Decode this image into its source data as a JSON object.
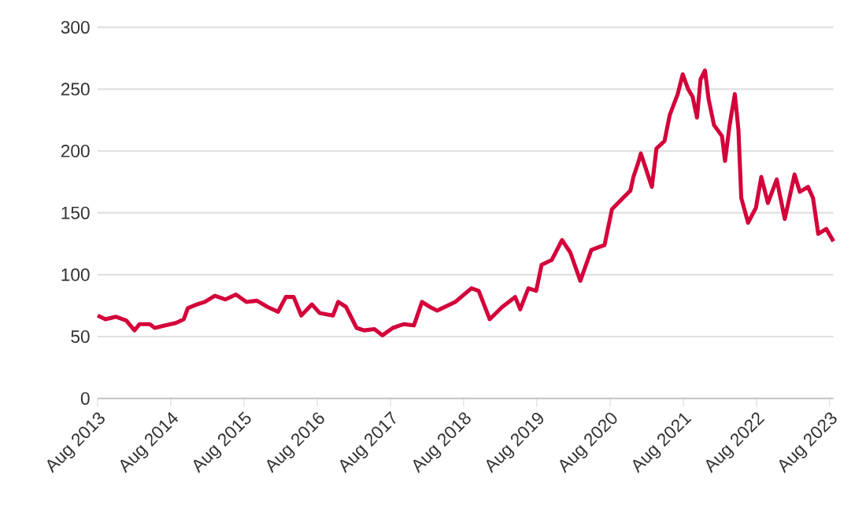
{
  "chart_data": {
    "type": "line",
    "color": "#d4003a",
    "grid": "y",
    "x": [
      "2013-08-01",
      "2013-09-09",
      "2013-11-01",
      "2013-12-22",
      "2014-02-01",
      "2014-02-26",
      "2014-04-18",
      "2014-05-13",
      "2014-07-05",
      "2014-08-26",
      "2014-10-05",
      "2014-10-25",
      "2014-12-09",
      "2015-01-18",
      "2015-03-09",
      "2015-05-01",
      "2015-06-22",
      "2015-08-13",
      "2015-10-05",
      "2015-11-26",
      "2016-01-18",
      "2016-02-26",
      "2016-04-05",
      "2016-05-13",
      "2016-07-05",
      "2016-08-13",
      "2016-10-18",
      "2016-11-13",
      "2016-12-22",
      "2017-02-13",
      "2017-03-22",
      "2017-05-13",
      "2017-06-22",
      "2017-08-13",
      "2017-10-05",
      "2017-11-26",
      "2018-01-05",
      "2018-02-13",
      "2018-03-22",
      "2018-04-04",
      "2018-06-20",
      "2018-09-09",
      "2018-10-15",
      "2018-12-09",
      "2019-02-10",
      "2019-04-15",
      "2019-05-10",
      "2019-06-20",
      "2019-07-29",
      "2019-08-25",
      "2019-10-15",
      "2019-12-05",
      "2020-01-15",
      "2020-03-05",
      "2020-04-29",
      "2020-07-04",
      "2020-08-10",
      "2020-10-04",
      "2020-11-10",
      "2020-11-25",
      "2020-12-20",
      "2021-01-01",
      "2021-02-25",
      "2021-03-20",
      "2021-04-29",
      "2021-05-25",
      "2021-07-04",
      "2021-07-29",
      "2021-08-25",
      "2021-09-16",
      "2021-10-08",
      "2021-10-26",
      "2021-11-17",
      "2021-12-05",
      "2022-01-01",
      "2022-02-10",
      "2022-02-25",
      "2022-03-20",
      "2022-04-15",
      "2022-05-03",
      "2022-05-17",
      "2022-06-20",
      "2022-07-29",
      "2022-08-25",
      "2022-09-27",
      "2022-11-10",
      "2022-12-20",
      "2023-02-07",
      "2023-03-05",
      "2023-04-15",
      "2023-05-10",
      "2023-06-05",
      "2023-07-15",
      "2023-08-20"
    ],
    "values": [
      67,
      64,
      66,
      63,
      55,
      60,
      60,
      57,
      59,
      61,
      64,
      73,
      76,
      78,
      83,
      80,
      84,
      78,
      79,
      74,
      70,
      82,
      82,
      67,
      76,
      69,
      67,
      78,
      74,
      57,
      55,
      56,
      51,
      57,
      60,
      59,
      78,
      74,
      71,
      72,
      78,
      89,
      87,
      64,
      74,
      82,
      72,
      89,
      87,
      108,
      112,
      128,
      118,
      95,
      120,
      124,
      153,
      162,
      168,
      179,
      191,
      198,
      171,
      202,
      208,
      229,
      246,
      262,
      250,
      244,
      227,
      258,
      265,
      242,
      221,
      212,
      192,
      221,
      246,
      217,
      162,
      142,
      154,
      179,
      158,
      177,
      145,
      181,
      167,
      171,
      162,
      133,
      137,
      127
    ],
    "xlim": [
      "2013-08-01",
      "2023-08-20"
    ],
    "xticks": [
      {
        "value": "2013-08-01",
        "label": "Aug 2013"
      },
      {
        "value": "2014-08-01",
        "label": "Aug 2014"
      },
      {
        "value": "2015-08-01",
        "label": "Aug 2015"
      },
      {
        "value": "2016-08-01",
        "label": "Aug 2016"
      },
      {
        "value": "2017-08-01",
        "label": "Aug 2017"
      },
      {
        "value": "2018-08-01",
        "label": "Aug 2018"
      },
      {
        "value": "2019-08-01",
        "label": "Aug 2019"
      },
      {
        "value": "2020-08-01",
        "label": "Aug 2020"
      },
      {
        "value": "2021-08-01",
        "label": "Aug 2021"
      },
      {
        "value": "2022-08-01",
        "label": "Aug 2022"
      },
      {
        "value": "2023-08-01",
        "label": "Aug 2023"
      }
    ],
    "ylim": [
      0,
      300
    ],
    "yticks": [
      0,
      50,
      100,
      150,
      200,
      250,
      300
    ]
  }
}
